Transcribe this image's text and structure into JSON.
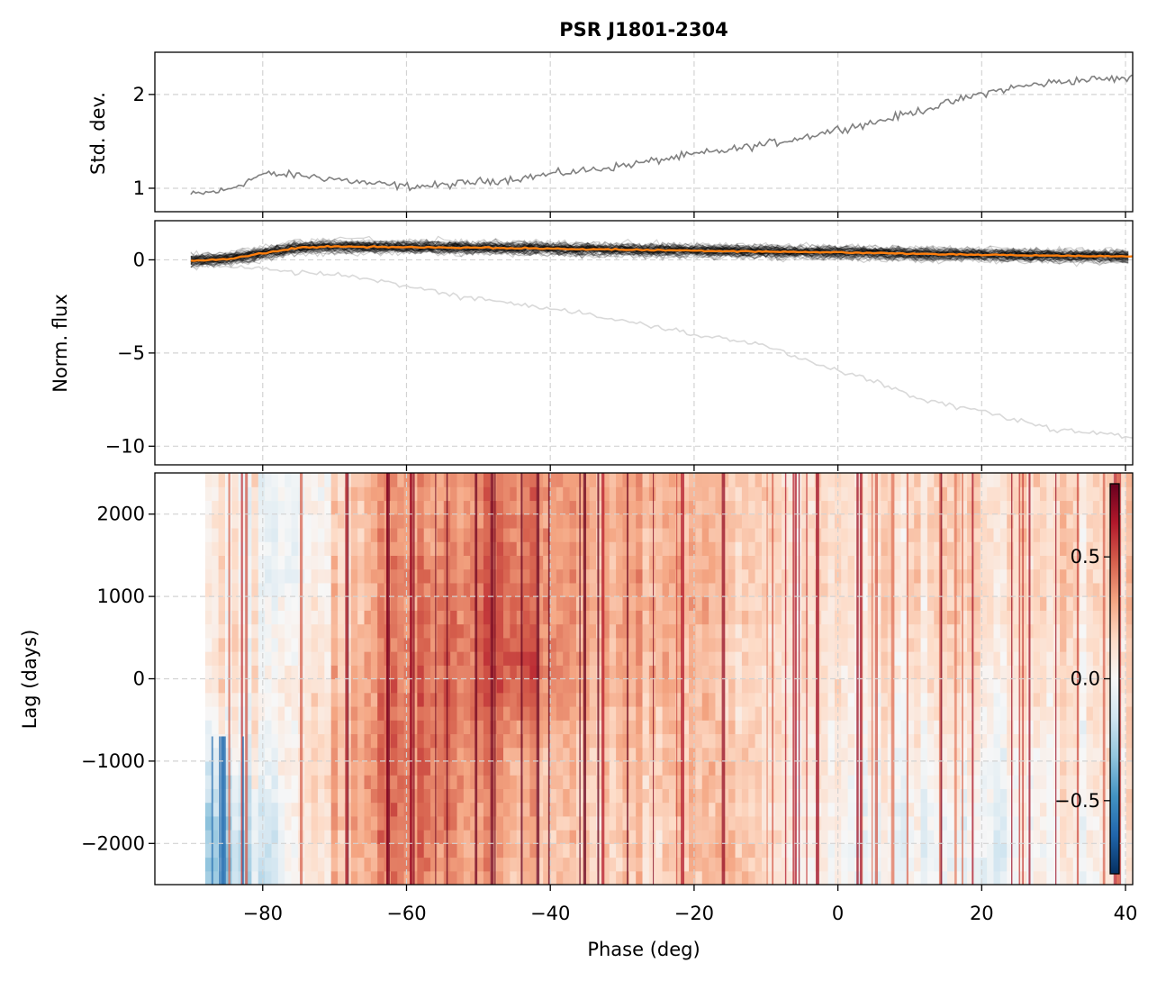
{
  "title": "PSR J1801-2304",
  "x_axis": {
    "label": "Phase (deg)",
    "ticks": [
      -80,
      -60,
      -40,
      -20,
      0,
      20,
      40
    ],
    "tick_labels": [
      "−80",
      "−60",
      "−40",
      "−20",
      "0",
      "20",
      "40"
    ]
  },
  "panels": {
    "std": {
      "ylabel": "Std. dev.",
      "ticks": [
        1,
        2
      ],
      "tick_labels": [
        "1",
        "2"
      ]
    },
    "flux": {
      "ylabel": "Norm. flux",
      "ticks": [
        0,
        -5,
        -10
      ],
      "tick_labels": [
        "0",
        "−5",
        "−10"
      ]
    },
    "lag": {
      "ylabel": "Lag (days)",
      "ticks": [
        2000,
        1000,
        0,
        -1000,
        -2000
      ],
      "tick_labels": [
        "2000",
        "1000",
        "0",
        "−1000",
        "−2000"
      ]
    }
  },
  "colorbar": {
    "ticks": [
      0.5,
      0.0,
      -0.5
    ],
    "tick_labels": [
      "0.5",
      "0.0",
      "−0.5"
    ],
    "range": [
      -0.8,
      0.8
    ],
    "colormap": "RdBu_r"
  },
  "colors": {
    "std_line": "#808080",
    "flux_traces": "#000000",
    "flux_outlier": "#d9d9d9",
    "flux_mean": "#ff7f0e",
    "grid": "#d3d3d3"
  },
  "chart_data": [
    {
      "type": "line",
      "panel": "top",
      "ylabel": "Std. dev.",
      "xlim": [
        -95,
        41
      ],
      "ylim": [
        0.75,
        2.45
      ],
      "grid": true,
      "series": [
        {
          "x": [
            -90,
            -85,
            -80,
            -75,
            -70,
            -65,
            -60,
            -55,
            -50,
            -45,
            -40,
            -35,
            -30,
            -25,
            -20,
            -15,
            -10,
            -5,
            0,
            5,
            10,
            15,
            20,
            25,
            30,
            35,
            40
          ],
          "values": [
            0.93,
            0.98,
            1.15,
            1.14,
            1.1,
            1.05,
            1.02,
            1.03,
            1.07,
            1.1,
            1.15,
            1.19,
            1.24,
            1.3,
            1.36,
            1.41,
            1.47,
            1.54,
            1.63,
            1.7,
            1.8,
            1.9,
            2.01,
            2.08,
            2.13,
            2.16,
            2.17
          ]
        }
      ]
    },
    {
      "type": "line",
      "panel": "middle",
      "ylabel": "Norm. flux",
      "xlim": [
        -95,
        41
      ],
      "ylim": [
        -11,
        2.1
      ],
      "grid": true,
      "series": [
        {
          "x": [
            -90,
            -85,
            -80,
            -75,
            -70,
            -65,
            -60,
            -55,
            -50,
            -45,
            -40,
            -35,
            -30,
            -25,
            -20,
            -15,
            -10,
            -5,
            0,
            5,
            10,
            15,
            20,
            25,
            30,
            35,
            40
          ],
          "values": [
            -0.05,
            0.05,
            0.35,
            0.65,
            0.72,
            0.7,
            0.68,
            0.67,
            0.65,
            0.63,
            0.6,
            0.57,
            0.55,
            0.52,
            0.5,
            0.47,
            0.45,
            0.42,
            0.4,
            0.37,
            0.33,
            0.3,
            0.28,
            0.25,
            0.22,
            0.2,
            0.18
          ]
        },
        {
          "x": [
            -90,
            -85,
            -80,
            -75,
            -70,
            -65,
            -60,
            -55,
            -50,
            -45,
            -40,
            -35,
            -30,
            -25,
            -20,
            -15,
            -10,
            -5,
            0,
            5,
            10,
            15,
            20,
            25,
            30,
            35,
            40
          ],
          "values": [
            -0.3,
            -0.3,
            -0.5,
            -0.7,
            -0.8,
            -1.0,
            -1.4,
            -1.8,
            -2.1,
            -2.3,
            -2.6,
            -2.9,
            -3.3,
            -3.6,
            -4.0,
            -4.3,
            -4.6,
            -5.3,
            -5.9,
            -6.5,
            -7.3,
            -7.8,
            -8.1,
            -8.6,
            -9.1,
            -9.3,
            -9.5
          ]
        }
      ]
    },
    {
      "type": "heatmap",
      "panel": "bottom",
      "ylabel": "Lag (days)",
      "xlabel": "Phase (deg)",
      "xlim": [
        -95,
        41
      ],
      "ylim": [
        -2500,
        2500
      ],
      "grid": true,
      "x": [
        -85,
        -75,
        -65,
        -55,
        -45,
        -35,
        -25,
        -15,
        -5,
        5,
        15,
        25,
        35
      ],
      "y": [
        2000,
        1000,
        0,
        -1000,
        -2000
      ],
      "z": [
        [
          0.05,
          -0.05,
          0.3,
          0.35,
          0.45,
          0.3,
          0.3,
          0.25,
          0.15,
          0.15,
          0.2,
          0.18,
          0.15
        ],
        [
          0.05,
          0.0,
          0.3,
          0.45,
          0.5,
          0.3,
          0.32,
          0.25,
          0.15,
          0.15,
          0.2,
          0.18,
          0.15
        ],
        [
          0.1,
          0.05,
          0.35,
          0.45,
          0.55,
          0.3,
          0.3,
          0.2,
          0.12,
          0.1,
          0.15,
          0.12,
          0.1
        ],
        [
          -0.1,
          0.1,
          0.4,
          0.45,
          0.35,
          0.2,
          0.25,
          0.25,
          0.1,
          0.05,
          0.05,
          0.05,
          0.08
        ],
        [
          -0.3,
          0.05,
          0.35,
          0.4,
          0.3,
          0.2,
          0.2,
          0.3,
          0.05,
          0.0,
          -0.02,
          0.0,
          0.05
        ]
      ]
    }
  ]
}
